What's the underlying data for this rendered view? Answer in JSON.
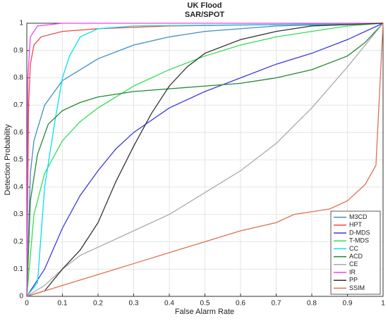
{
  "chart_data": {
    "type": "line",
    "title": "UK Flood",
    "subtitle": "SAR/SPOT",
    "x_label": "False Alarm Rate",
    "y_label": "Detection Probability",
    "xlim": [
      0,
      1
    ],
    "ylim": [
      0,
      1
    ],
    "xticks": [
      0,
      0.1,
      0.2,
      0.3,
      0.4,
      0.5,
      0.6,
      0.7,
      0.8,
      0.9,
      1
    ],
    "yticks": [
      0,
      0.1,
      0.2,
      0.3,
      0.4,
      0.5,
      0.6,
      0.7,
      0.8,
      0.9,
      1
    ],
    "grid": true,
    "legend": "lower-right",
    "series": [
      {
        "name": "M3CD",
        "color": "#3a8fc4",
        "x": [
          0,
          0.01,
          0.02,
          0.05,
          0.1,
          0.2,
          0.3,
          0.4,
          0.5,
          0.7,
          1
        ],
        "values": [
          0,
          0.45,
          0.57,
          0.7,
          0.79,
          0.87,
          0.92,
          0.95,
          0.97,
          0.99,
          1
        ]
      },
      {
        "name": "HPT",
        "color": "#f04848",
        "x": [
          0,
          0.005,
          0.01,
          0.02,
          0.04,
          0.1,
          0.2,
          0.4,
          1
        ],
        "values": [
          0,
          0.7,
          0.85,
          0.92,
          0.95,
          0.97,
          0.98,
          0.99,
          1
        ]
      },
      {
        "name": "D-MDS",
        "color": "#3a3ae0",
        "x": [
          0,
          0.05,
          0.1,
          0.15,
          0.2,
          0.25,
          0.3,
          0.4,
          0.5,
          0.6,
          0.7,
          0.8,
          0.9,
          0.95,
          1
        ],
        "values": [
          0,
          0.1,
          0.25,
          0.37,
          0.46,
          0.54,
          0.6,
          0.69,
          0.75,
          0.8,
          0.85,
          0.89,
          0.94,
          0.97,
          1
        ]
      },
      {
        "name": "T-MDS",
        "color": "#33dd55",
        "x": [
          0,
          0.02,
          0.05,
          0.1,
          0.15,
          0.2,
          0.3,
          0.4,
          0.5,
          0.6,
          0.7,
          0.8,
          0.9,
          1
        ],
        "values": [
          0,
          0.3,
          0.45,
          0.57,
          0.64,
          0.69,
          0.77,
          0.83,
          0.88,
          0.92,
          0.95,
          0.97,
          0.99,
          1
        ]
      },
      {
        "name": "CC",
        "color": "#00e0ee",
        "x": [
          0,
          0.03,
          0.05,
          0.08,
          0.1,
          0.12,
          0.15,
          0.2,
          0.3,
          1
        ],
        "values": [
          0,
          0.05,
          0.4,
          0.65,
          0.8,
          0.88,
          0.95,
          0.98,
          0.99,
          1
        ]
      },
      {
        "name": "ACD",
        "color": "#228833",
        "x": [
          0,
          0.01,
          0.03,
          0.06,
          0.1,
          0.15,
          0.2,
          0.3,
          0.4,
          0.5,
          0.6,
          0.7,
          0.8,
          0.9,
          0.95,
          1
        ],
        "values": [
          0,
          0.35,
          0.52,
          0.63,
          0.68,
          0.71,
          0.73,
          0.75,
          0.76,
          0.77,
          0.78,
          0.8,
          0.83,
          0.88,
          0.93,
          1
        ]
      },
      {
        "name": "CE",
        "color": "#aaaaaa",
        "x": [
          0,
          0.05,
          0.1,
          0.15,
          0.2,
          0.3,
          0.4,
          0.5,
          0.6,
          0.7,
          0.8,
          0.9,
          1
        ],
        "values": [
          0,
          0.04,
          0.1,
          0.15,
          0.18,
          0.24,
          0.3,
          0.38,
          0.46,
          0.56,
          0.69,
          0.84,
          1
        ]
      },
      {
        "name": "IR",
        "color": "#ee44ee",
        "x": [
          0,
          0.003,
          0.01,
          0.03,
          0.1,
          1
        ],
        "values": [
          0,
          0.8,
          0.95,
          0.99,
          1,
          1
        ]
      },
      {
        "name": "PP",
        "color": "#333333",
        "x": [
          0,
          0.05,
          0.1,
          0.15,
          0.2,
          0.25,
          0.3,
          0.35,
          0.4,
          0.45,
          0.5,
          0.6,
          0.7,
          0.8,
          1
        ],
        "values": [
          0,
          0.02,
          0.1,
          0.17,
          0.27,
          0.42,
          0.55,
          0.67,
          0.77,
          0.84,
          0.89,
          0.94,
          0.97,
          0.99,
          1
        ]
      },
      {
        "name": "SSIM",
        "color": "#e07050",
        "x": [
          0,
          0.05,
          0.1,
          0.2,
          0.3,
          0.4,
          0.5,
          0.6,
          0.7,
          0.75,
          0.85,
          0.9,
          0.95,
          0.98,
          1
        ],
        "values": [
          0,
          0.02,
          0.04,
          0.08,
          0.12,
          0.16,
          0.2,
          0.24,
          0.27,
          0.3,
          0.32,
          0.35,
          0.41,
          0.48,
          1
        ]
      }
    ]
  }
}
